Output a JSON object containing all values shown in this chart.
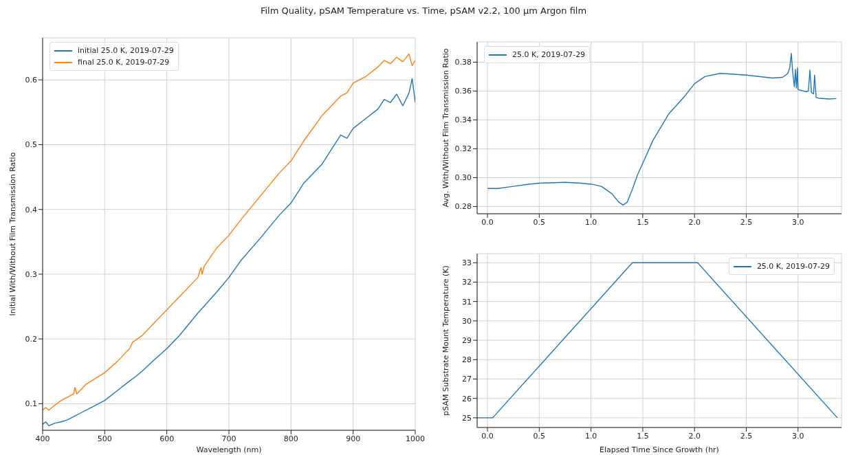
{
  "chart_data": [
    {
      "type": "line",
      "title": "Film Quality, pSAM Temperature vs. Time, pSAM v2.2, 100 μm Argon film",
      "xlabel": "Wavelength (nm)",
      "ylabel": "Initial With/Without Film Transmission Ratio",
      "xlim": [
        400,
        1000
      ],
      "ylim": [
        0.059,
        0.665
      ],
      "xticks": [
        400,
        500,
        600,
        700,
        800,
        900,
        1000
      ],
      "yticks": [
        0.1,
        0.2,
        0.3,
        0.4,
        0.5,
        0.6
      ],
      "grid": true,
      "legend": "top left",
      "line_style": "solid",
      "marker": "none",
      "series": [
        {
          "name": "initial 25.0 K, 2019-07-29",
          "color": "#1f77b4",
          "x": [
            400,
            405,
            410,
            420,
            430,
            440,
            450,
            460,
            480,
            500,
            520,
            540,
            550,
            560,
            580,
            600,
            620,
            650,
            680,
            700,
            720,
            750,
            780,
            800,
            820,
            850,
            870,
            880,
            890,
            900,
            920,
            940,
            950,
            960,
            970,
            980,
            990,
            995,
            1000
          ],
          "values": [
            0.068,
            0.072,
            0.066,
            0.07,
            0.072,
            0.075,
            0.08,
            0.085,
            0.095,
            0.105,
            0.12,
            0.135,
            0.142,
            0.15,
            0.168,
            0.185,
            0.205,
            0.24,
            0.272,
            0.295,
            0.322,
            0.355,
            0.39,
            0.41,
            0.44,
            0.47,
            0.5,
            0.515,
            0.51,
            0.525,
            0.54,
            0.555,
            0.57,
            0.565,
            0.578,
            0.56,
            0.58,
            0.602,
            0.565
          ]
        },
        {
          "name": "final 25.0 K, 2019-07-29",
          "color": "#ff7f0e",
          "x": [
            400,
            405,
            410,
            420,
            430,
            440,
            450,
            452,
            455,
            470,
            500,
            520,
            540,
            545,
            560,
            580,
            600,
            620,
            650,
            655,
            657,
            660,
            680,
            700,
            720,
            750,
            780,
            800,
            820,
            850,
            870,
            880,
            890,
            900,
            920,
            940,
            950,
            960,
            970,
            980,
            990,
            995,
            1000
          ],
          "values": [
            0.09,
            0.094,
            0.09,
            0.098,
            0.105,
            0.11,
            0.115,
            0.125,
            0.115,
            0.13,
            0.148,
            0.165,
            0.185,
            0.195,
            0.205,
            0.225,
            0.245,
            0.265,
            0.295,
            0.31,
            0.3,
            0.312,
            0.34,
            0.36,
            0.385,
            0.42,
            0.455,
            0.475,
            0.505,
            0.545,
            0.565,
            0.575,
            0.58,
            0.595,
            0.605,
            0.62,
            0.63,
            0.625,
            0.635,
            0.628,
            0.64,
            0.622,
            0.63
          ]
        }
      ]
    },
    {
      "type": "line",
      "ylabel": "Avg. With/Without Film Transmission Ratio",
      "xlim": [
        -0.1,
        3.42
      ],
      "ylim": [
        0.275,
        0.394
      ],
      "xticks": [
        {
          "value": 0,
          "label": "0.0"
        },
        {
          "value": 0.5,
          "label": "0.5"
        },
        {
          "value": 1,
          "label": "1.0"
        },
        {
          "value": 1.5,
          "label": "1.5"
        },
        {
          "value": 2,
          "label": "2.0"
        },
        {
          "value": 2.5,
          "label": "2.5"
        },
        {
          "value": 3,
          "label": "3.0"
        }
      ],
      "yticks": [
        {
          "value": 0.28,
          "label": "0.28"
        },
        {
          "value": 0.3,
          "label": "0.30"
        },
        {
          "value": 0.32,
          "label": "0.32"
        },
        {
          "value": 0.34,
          "label": "0.34"
        },
        {
          "value": 0.36,
          "label": "0.36"
        },
        {
          "value": 0.38,
          "label": "0.38"
        }
      ],
      "grid": true,
      "legend": "top left",
      "line_style": "solid",
      "marker": "none",
      "series": [
        {
          "name": "25.0 K, 2019-07-29",
          "color": "#1f77b4",
          "x": [
            0,
            0.1,
            0.25,
            0.4,
            0.5,
            0.75,
            0.9,
            1.0,
            1.1,
            1.2,
            1.27,
            1.31,
            1.35,
            1.4,
            1.45,
            1.5,
            1.6,
            1.75,
            1.9,
            2.0,
            2.1,
            2.25,
            2.5,
            2.75,
            2.85,
            2.9,
            2.92,
            2.935,
            2.95,
            2.965,
            2.975,
            2.985,
            2.995,
            3.0,
            3.08,
            3.1,
            3.115,
            3.13,
            3.15,
            3.16,
            3.175,
            3.2,
            3.3,
            3.37
          ],
          "values": [
            0.2925,
            0.2925,
            0.294,
            0.2955,
            0.2962,
            0.2968,
            0.2962,
            0.2955,
            0.294,
            0.289,
            0.283,
            0.281,
            0.283,
            0.292,
            0.302,
            0.31,
            0.326,
            0.344,
            0.356,
            0.365,
            0.37,
            0.3722,
            0.371,
            0.369,
            0.3695,
            0.372,
            0.376,
            0.386,
            0.372,
            0.363,
            0.375,
            0.362,
            0.376,
            0.361,
            0.3595,
            0.36,
            0.3745,
            0.359,
            0.358,
            0.371,
            0.3555,
            0.355,
            0.3545,
            0.3548
          ]
        }
      ]
    },
    {
      "type": "line",
      "xlabel": "Elapsed Time Since Growth (hr)",
      "ylabel": "pSAM Substrate Mount Temperature (K)",
      "xlim": [
        -0.1,
        3.42
      ],
      "ylim": [
        24.5,
        33.47
      ],
      "xticks": [
        {
          "value": 0,
          "label": "0.0"
        },
        {
          "value": 0.5,
          "label": "0.5"
        },
        {
          "value": 1,
          "label": "1.0"
        },
        {
          "value": 1.5,
          "label": "1.5"
        },
        {
          "value": 2,
          "label": "2.0"
        },
        {
          "value": 2.5,
          "label": "2.5"
        },
        {
          "value": 3,
          "label": "3.0"
        }
      ],
      "yticks": [
        25,
        26,
        27,
        28,
        29,
        30,
        31,
        32,
        33
      ],
      "grid": true,
      "legend": "top right",
      "line_style": "solid",
      "marker": "none",
      "series": [
        {
          "name": "25.0 K, 2019-07-29",
          "color": "#1f77b4",
          "x": [
            -0.1,
            0.05,
            1.4,
            2.03,
            3.38
          ],
          "values": [
            25,
            25,
            33,
            33,
            25
          ]
        }
      ]
    }
  ]
}
